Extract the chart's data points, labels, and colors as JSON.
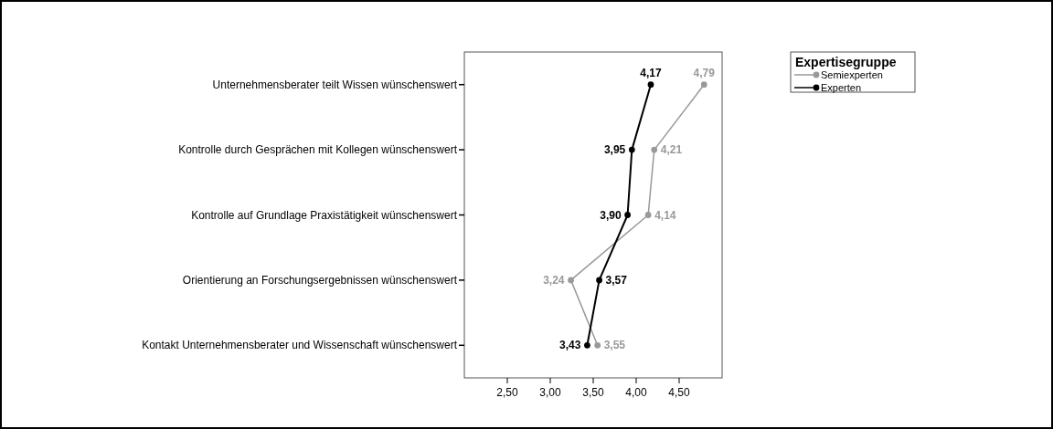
{
  "chart_data": {
    "type": "line",
    "orientation": "horizontal",
    "legend_title": "Expertisegruppe",
    "legend": "top right",
    "marker": "circle",
    "line_style": "solid",
    "grid": false,
    "categories": [
      "Unternehmensberater teilt Wissen wünschenswert",
      "Kontrolle durch Gesprächen mit Kollegen wünschenswert",
      "Kontrolle auf Grundlage Praxistätigkeit wünschenswert",
      "Orientierung an Forschungsergebnissen wünschenswert",
      "Kontakt Unternehmensberater und Wissenschaft wünschenswert"
    ],
    "series": [
      {
        "name": "Semiexperten",
        "color": "#999999",
        "values": [
          4.79,
          4.21,
          4.14,
          3.24,
          3.55
        ],
        "value_labels": [
          "4,79",
          "4,21",
          "4,14",
          "3,24",
          "3,55"
        ]
      },
      {
        "name": "Experten",
        "color": "#000000",
        "values": [
          4.17,
          3.95,
          3.9,
          3.57,
          3.43
        ],
        "value_labels": [
          "4,17",
          "3,95",
          "3,90",
          "3,57",
          "3,43"
        ]
      }
    ],
    "xlim": [
      2,
      5
    ],
    "xticks": [
      {
        "value": 2.5,
        "label": "2,50"
      },
      {
        "value": 3,
        "label": "3,00"
      },
      {
        "value": 3.5,
        "label": "3,50"
      },
      {
        "value": 4,
        "label": "4,00"
      },
      {
        "value": 4.5,
        "label": "4,50"
      }
    ]
  }
}
